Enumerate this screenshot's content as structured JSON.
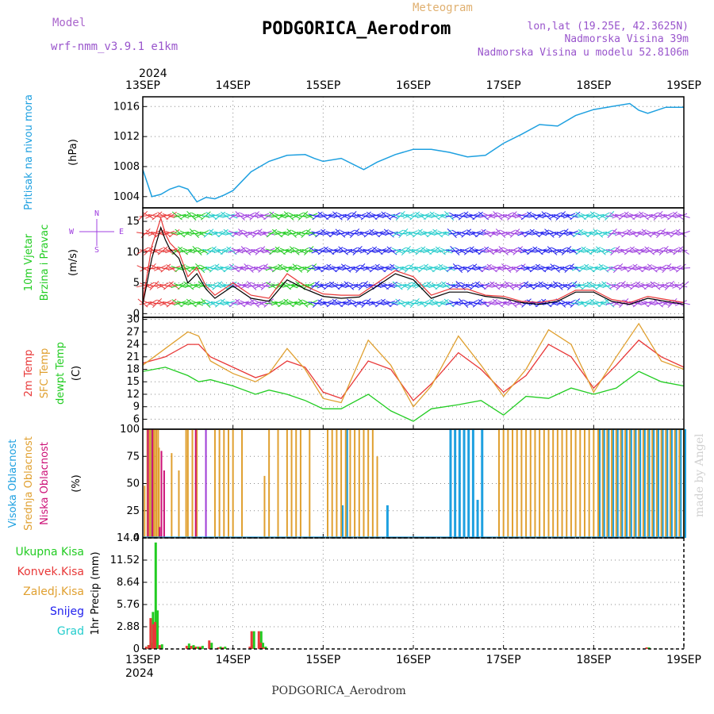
{
  "header": {
    "model_label": "Model",
    "model_name": "wrf-nmm_v3.9.1 e1km",
    "meteogram_label": "Meteogram",
    "station": "PODGORICA_Aerodrom",
    "lonlat": "lon,lat (19.25E, 42.3625N)",
    "elevation": "Nadmorska Visina 39m",
    "model_elevation": "Nadmorska Visina u modelu 52.8106m",
    "year": "2024",
    "footer": "PODGORICA_Aerodrom",
    "credit": "made by Angel"
  },
  "colors": {
    "pressure": "#1ea0e0",
    "green": "#22cc22",
    "red": "#e83838",
    "orange": "#e0a030",
    "magenta": "#cc1177",
    "purple": "#a040e0",
    "blue": "#2222ee",
    "cyan": "#22cccc"
  },
  "chart_data": [
    {
      "type": "line",
      "name": "pressure",
      "ylabel": [
        "Pritisak na nivou mora",
        "(hPa)"
      ],
      "x_ticks": [
        "13SEP",
        "14SEP",
        "15SEP",
        "16SEP",
        "17SEP",
        "18SEP",
        "19SEP"
      ],
      "yticks": [
        1004,
        1008,
        1012,
        1016
      ],
      "ylim": [
        1002.5,
        1017.3
      ],
      "x": [
        0,
        0.1,
        0.2,
        0.3,
        0.4,
        0.5,
        0.6,
        0.7,
        0.8,
        0.9,
        1.0,
        1.2,
        1.4,
        1.6,
        1.8,
        1.9,
        2.0,
        2.2,
        2.4,
        2.45,
        2.6,
        2.8,
        3.0,
        3.2,
        3.4,
        3.6,
        3.8,
        4.0,
        4.2,
        4.4,
        4.6,
        4.8,
        5.0,
        5.2,
        5.4,
        5.5,
        5.6,
        5.8,
        6.0
      ],
      "values": [
        1007.6,
        1004.0,
        1004.3,
        1005.0,
        1005.4,
        1005.0,
        1003.3,
        1003.9,
        1003.7,
        1004.2,
        1004.8,
        1007.3,
        1008.7,
        1009.5,
        1009.6,
        1009.1,
        1008.7,
        1009.1,
        1007.9,
        1007.6,
        1008.6,
        1009.6,
        1010.3,
        1010.3,
        1009.9,
        1009.3,
        1009.5,
        1011.1,
        1012.3,
        1013.6,
        1013.4,
        1014.8,
        1015.6,
        1016.0,
        1016.4,
        1015.5,
        1015.1,
        1015.9,
        1015.9
      ]
    },
    {
      "type": "line",
      "name": "wind",
      "ylabel": [
        "10m Vjetar",
        "Brzina i Pravac",
        "(m/s)"
      ],
      "compass": [
        "N",
        "E",
        "S",
        "W"
      ],
      "yticks": [
        0,
        5,
        10,
        15
      ],
      "ylim": [
        -0.6,
        17.2
      ],
      "x": [
        0,
        0.1,
        0.2,
        0.25,
        0.3,
        0.4,
        0.5,
        0.6,
        0.7,
        0.8,
        1.0,
        1.2,
        1.4,
        1.6,
        1.8,
        2.0,
        2.2,
        2.4,
        2.6,
        2.8,
        3.0,
        3.2,
        3.4,
        3.6,
        3.8,
        4.0,
        4.2,
        4.4,
        4.6,
        4.8,
        5.0,
        5.2,
        5.4,
        5.6,
        5.8,
        6.0
      ],
      "series": [
        {
          "values": [
            1.5,
            9.0,
            14.0,
            12.0,
            10.5,
            9.0,
            5.0,
            6.5,
            4.0,
            2.5,
            4.5,
            2.5,
            2.0,
            5.5,
            4.0,
            2.8,
            2.5,
            2.7,
            4.5,
            6.5,
            5.5,
            2.5,
            3.5,
            3.5,
            2.8,
            2.5,
            1.8,
            1.5,
            2.0,
            3.5,
            3.5,
            2.0,
            1.5,
            2.5,
            2.0,
            1.5
          ]
        },
        {
          "values": [
            2.0,
            11.0,
            15.5,
            13.0,
            11.5,
            10.0,
            6.0,
            7.5,
            4.5,
            3.0,
            5.0,
            3.0,
            2.5,
            6.5,
            4.5,
            3.2,
            3.0,
            3.0,
            5.0,
            7.0,
            6.0,
            3.0,
            4.0,
            4.0,
            3.0,
            2.8,
            2.0,
            1.8,
            2.3,
            3.8,
            3.8,
            2.3,
            1.8,
            2.8,
            2.3,
            1.8
          ]
        }
      ]
    },
    {
      "type": "line",
      "name": "temperature",
      "ylabel": [
        "2m Temp",
        "SFC Temp",
        "dewpt Temp",
        "(C)"
      ],
      "yticks": [
        6,
        9,
        12,
        15,
        18,
        21,
        24,
        27,
        30
      ],
      "ylim": [
        3.6,
        30.5
      ],
      "x": [
        0,
        0.25,
        0.5,
        0.62,
        0.75,
        1.0,
        1.25,
        1.4,
        1.6,
        1.8,
        2.0,
        2.2,
        2.5,
        2.75,
        3.0,
        3.2,
        3.5,
        3.75,
        4.0,
        4.25,
        4.5,
        4.75,
        5.0,
        5.25,
        5.5,
        5.75,
        6.0
      ],
      "series": [
        {
          "values": [
            19.5,
            21.0,
            24.0,
            24.0,
            21.0,
            18.5,
            16.0,
            17.0,
            20.0,
            18.5,
            12.5,
            11.0,
            20.0,
            18.0,
            10.5,
            14.5,
            22.0,
            18.0,
            12.5,
            16.5,
            24.0,
            21.0,
            13.5,
            19.0,
            25.0,
            21.0,
            18.5
          ]
        },
        {
          "values": [
            19.0,
            23.0,
            27.0,
            26.0,
            20.0,
            17.0,
            15.0,
            17.0,
            23.0,
            18.0,
            11.0,
            10.0,
            25.0,
            19.0,
            9.0,
            14.0,
            26.0,
            19.0,
            11.5,
            18.0,
            27.5,
            24.0,
            12.5,
            21.0,
            29.0,
            20.0,
            18.0
          ]
        },
        {
          "values": [
            17.5,
            18.5,
            16.5,
            15.0,
            15.5,
            14.0,
            12.0,
            13.0,
            12.0,
            10.5,
            8.5,
            8.5,
            12.0,
            8.0,
            5.5,
            8.5,
            9.5,
            10.5,
            7.0,
            11.5,
            11.0,
            13.5,
            12.0,
            13.5,
            17.5,
            15.0,
            14.0
          ]
        }
      ]
    },
    {
      "type": "bar",
      "name": "cloud",
      "ylabel": [
        "Visoka Oblacnost",
        "Srednja Oblacnost",
        "Niska Oblacnost",
        "(%)"
      ],
      "yticks": [
        0,
        25,
        50,
        75,
        100
      ],
      "ylim": [
        0,
        100
      ],
      "x": [
        0.02,
        0.05,
        0.07,
        0.08,
        0.1,
        0.12,
        0.13,
        0.15,
        0.17,
        0.18,
        0.2,
        0.22,
        0.25,
        0.28,
        0.32,
        0.4,
        0.48,
        0.5,
        0.55,
        0.6,
        0.7,
        0.8,
        0.85,
        0.9,
        0.95,
        1.0,
        1.1,
        1.2,
        1.22,
        1.25,
        1.3,
        1.35,
        1.4,
        1.5,
        1.6,
        1.65,
        1.7,
        1.75,
        1.85,
        1.95,
        2.0,
        2.05,
        2.1,
        2.15,
        2.2,
        2.25,
        2.3,
        2.35,
        2.4,
        2.45,
        2.5,
        2.55,
        2.6,
        2.65,
        2.7,
        2.75,
        2.8,
        2.85,
        2.9,
        3.3,
        3.35,
        3.4,
        3.45,
        3.5,
        3.55,
        3.6,
        3.65,
        3.7,
        3.75,
        3.8,
        3.85,
        3.9,
        3.95,
        4.0,
        4.05,
        4.1,
        4.15,
        4.2,
        4.25,
        4.3,
        4.35,
        4.4,
        4.45,
        4.5,
        4.55,
        4.6,
        4.65,
        4.7,
        4.75,
        4.8,
        4.85,
        4.9,
        4.95,
        5.0,
        5.05,
        5.1,
        5.15,
        5.2,
        5.25,
        5.3,
        5.35,
        5.4,
        5.45,
        5.5,
        5.55,
        5.6,
        5.65,
        5.7,
        5.75,
        5.8,
        5.85,
        5.9,
        5.95,
        6.0
      ],
      "series": [
        {
          "values": [
            0,
            0,
            100,
            0,
            100,
            0,
            0,
            0,
            0,
            0,
            0,
            0,
            0,
            0,
            0,
            0,
            0,
            0,
            0,
            0,
            0,
            0,
            0,
            0,
            0,
            0,
            0,
            0,
            0,
            0,
            0,
            0,
            0,
            0,
            0,
            0,
            0,
            0,
            0,
            0,
            0,
            0,
            0,
            0,
            30,
            100,
            0,
            0,
            0,
            0,
            0,
            0,
            0,
            0,
            30,
            0,
            0,
            0,
            0,
            0,
            0,
            100,
            100,
            100,
            100,
            100,
            100,
            35,
            100,
            0,
            0,
            0,
            0,
            0,
            0,
            0,
            0,
            0,
            0,
            0,
            0,
            0,
            0,
            0,
            0,
            0,
            0,
            0,
            0,
            0,
            0,
            0,
            0,
            0,
            100,
            100,
            100,
            100,
            100,
            100,
            100,
            100,
            100,
            100,
            100,
            100,
            100,
            100,
            100,
            100,
            100,
            100,
            100,
            100
          ]
        },
        {
          "values": [
            48,
            100,
            100,
            100,
            100,
            100,
            100,
            100,
            100,
            83,
            0,
            0,
            0,
            0,
            78,
            62,
            100,
            100,
            100,
            100,
            100,
            100,
            100,
            100,
            100,
            100,
            100,
            0,
            0,
            0,
            0,
            57,
            100,
            100,
            100,
            100,
            100,
            100,
            100,
            0,
            0,
            100,
            100,
            100,
            100,
            100,
            100,
            100,
            100,
            100,
            100,
            100,
            75,
            0,
            0,
            0,
            0,
            0,
            0,
            0,
            0,
            0,
            0,
            0,
            0,
            0,
            0,
            0,
            0,
            0,
            0,
            0,
            100,
            100,
            100,
            100,
            100,
            100,
            100,
            100,
            100,
            100,
            100,
            100,
            100,
            100,
            100,
            100,
            100,
            100,
            100,
            100,
            100,
            100,
            100,
            100,
            100,
            100,
            100,
            100,
            100,
            100,
            100,
            100,
            100,
            100,
            100,
            100,
            100,
            100,
            100,
            100,
            100,
            100
          ]
        },
        {
          "values": [
            0,
            0,
            100,
            0,
            0,
            100,
            0,
            0,
            0,
            0,
            10,
            80,
            62,
            0,
            0,
            0,
            0,
            0,
            0,
            100,
            0,
            0,
            0,
            0,
            0,
            0,
            0,
            0,
            0,
            0,
            0,
            0,
            0,
            0,
            0,
            0,
            0,
            0,
            0,
            0,
            0,
            0,
            0,
            0,
            0,
            0,
            0,
            0,
            0,
            0,
            0,
            0,
            0,
            0,
            0,
            0,
            0,
            0,
            0,
            0,
            0,
            0,
            0,
            0,
            0,
            0,
            0,
            0,
            0,
            0,
            0,
            0,
            0,
            0,
            0,
            0,
            0,
            0,
            0,
            0,
            0,
            0,
            0,
            0,
            0,
            0,
            0,
            0,
            0,
            0,
            0,
            0,
            0,
            0,
            0,
            0,
            0,
            0,
            0,
            0,
            0,
            0,
            0,
            0,
            0,
            0,
            0,
            0,
            0,
            0,
            0,
            0,
            0,
            0
          ]
        },
        {
          "values": [
            0,
            0,
            0,
            0,
            0,
            0,
            0,
            0,
            0,
            0,
            0,
            0,
            0,
            0,
            0,
            0,
            0,
            0,
            0,
            0,
            100,
            0,
            0,
            0,
            0,
            0,
            0,
            0,
            0,
            0,
            0,
            0,
            0,
            0,
            0,
            0,
            0,
            0,
            0,
            0,
            0,
            0,
            0,
            0,
            0,
            0,
            0,
            0,
            0,
            0,
            0,
            0,
            0,
            0,
            0,
            0,
            0,
            0,
            0,
            0,
            0,
            0,
            0,
            0,
            0,
            0,
            0,
            0,
            0,
            0,
            0,
            0,
            0,
            0,
            0,
            0,
            0,
            0,
            0,
            0,
            0,
            0,
            0,
            0,
            0,
            0,
            0,
            0,
            0,
            0,
            0,
            0,
            0,
            0,
            0,
            0,
            0,
            0,
            0,
            0,
            0,
            0,
            0,
            0,
            0,
            0,
            0,
            0,
            0,
            0,
            0,
            0,
            0,
            0
          ]
        }
      ]
    },
    {
      "type": "bar",
      "name": "precip",
      "ylabel": [
        "1hr Precip (mm)"
      ],
      "legend": [
        "Ukupna Kisa",
        "Konvek.Kisa",
        "Zaledj.Kisa",
        "Snijeg",
        "Grad"
      ],
      "yticks": [
        "0",
        "2.88",
        "5.76",
        "8.64",
        "11.52",
        "14.4"
      ],
      "ylim": [
        0,
        14.4
      ],
      "x": [
        0.05,
        0.08,
        0.1,
        0.13,
        0.15,
        0.2,
        0.5,
        0.55,
        0.6,
        0.65,
        0.75,
        0.85,
        0.9,
        1.2,
        1.22,
        1.3,
        1.32,
        1.35,
        5.6
      ],
      "series": [
        {
          "values": [
            0.5,
            0.8,
            4.8,
            13.8,
            5.0,
            0.6,
            0.7,
            0.5,
            0.3,
            0.4,
            0.8,
            0.3,
            0.3,
            0.5,
            2.3,
            2.3,
            0.8,
            0.3,
            0.2
          ]
        },
        {
          "values": [
            0.3,
            0.5,
            4.0,
            3.2,
            3.5,
            0.5,
            0.4,
            0.4,
            0.3,
            0.3,
            1.1,
            0.2,
            0.2,
            0.3,
            2.3,
            2.3,
            0.8,
            0.2,
            0.2
          ]
        }
      ]
    }
  ]
}
